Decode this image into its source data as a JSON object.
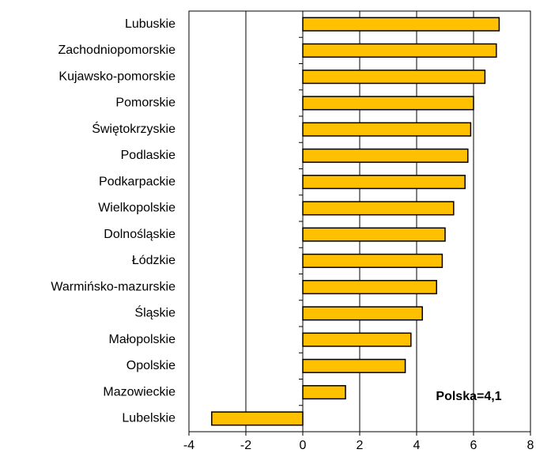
{
  "chart_data": {
    "type": "barh",
    "categories": [
      "Lubuskie",
      "Zachodniopomorskie",
      "Kujawsko-pomorskie",
      "Pomorskie",
      "Świętokrzyskie",
      "Podlaskie",
      "Podkarpackie",
      "Wielkopolskie",
      "Dolnośląskie",
      "Łódzkie",
      "Warmińsko-mazurskie",
      "Śląskie",
      "Małopolskie",
      "Opolskie",
      "Mazowieckie",
      "Lubelskie"
    ],
    "values": [
      6.9,
      6.8,
      6.4,
      6.0,
      5.9,
      5.8,
      5.7,
      5.3,
      5.0,
      4.9,
      4.7,
      4.2,
      3.8,
      3.6,
      1.5,
      -3.2
    ],
    "color": "#ffc000",
    "xlim": [
      -4,
      8
    ],
    "xticks": [
      -4,
      -2,
      0,
      2,
      4,
      6,
      8
    ],
    "grid": true,
    "annotation": "Polska=4,1"
  }
}
